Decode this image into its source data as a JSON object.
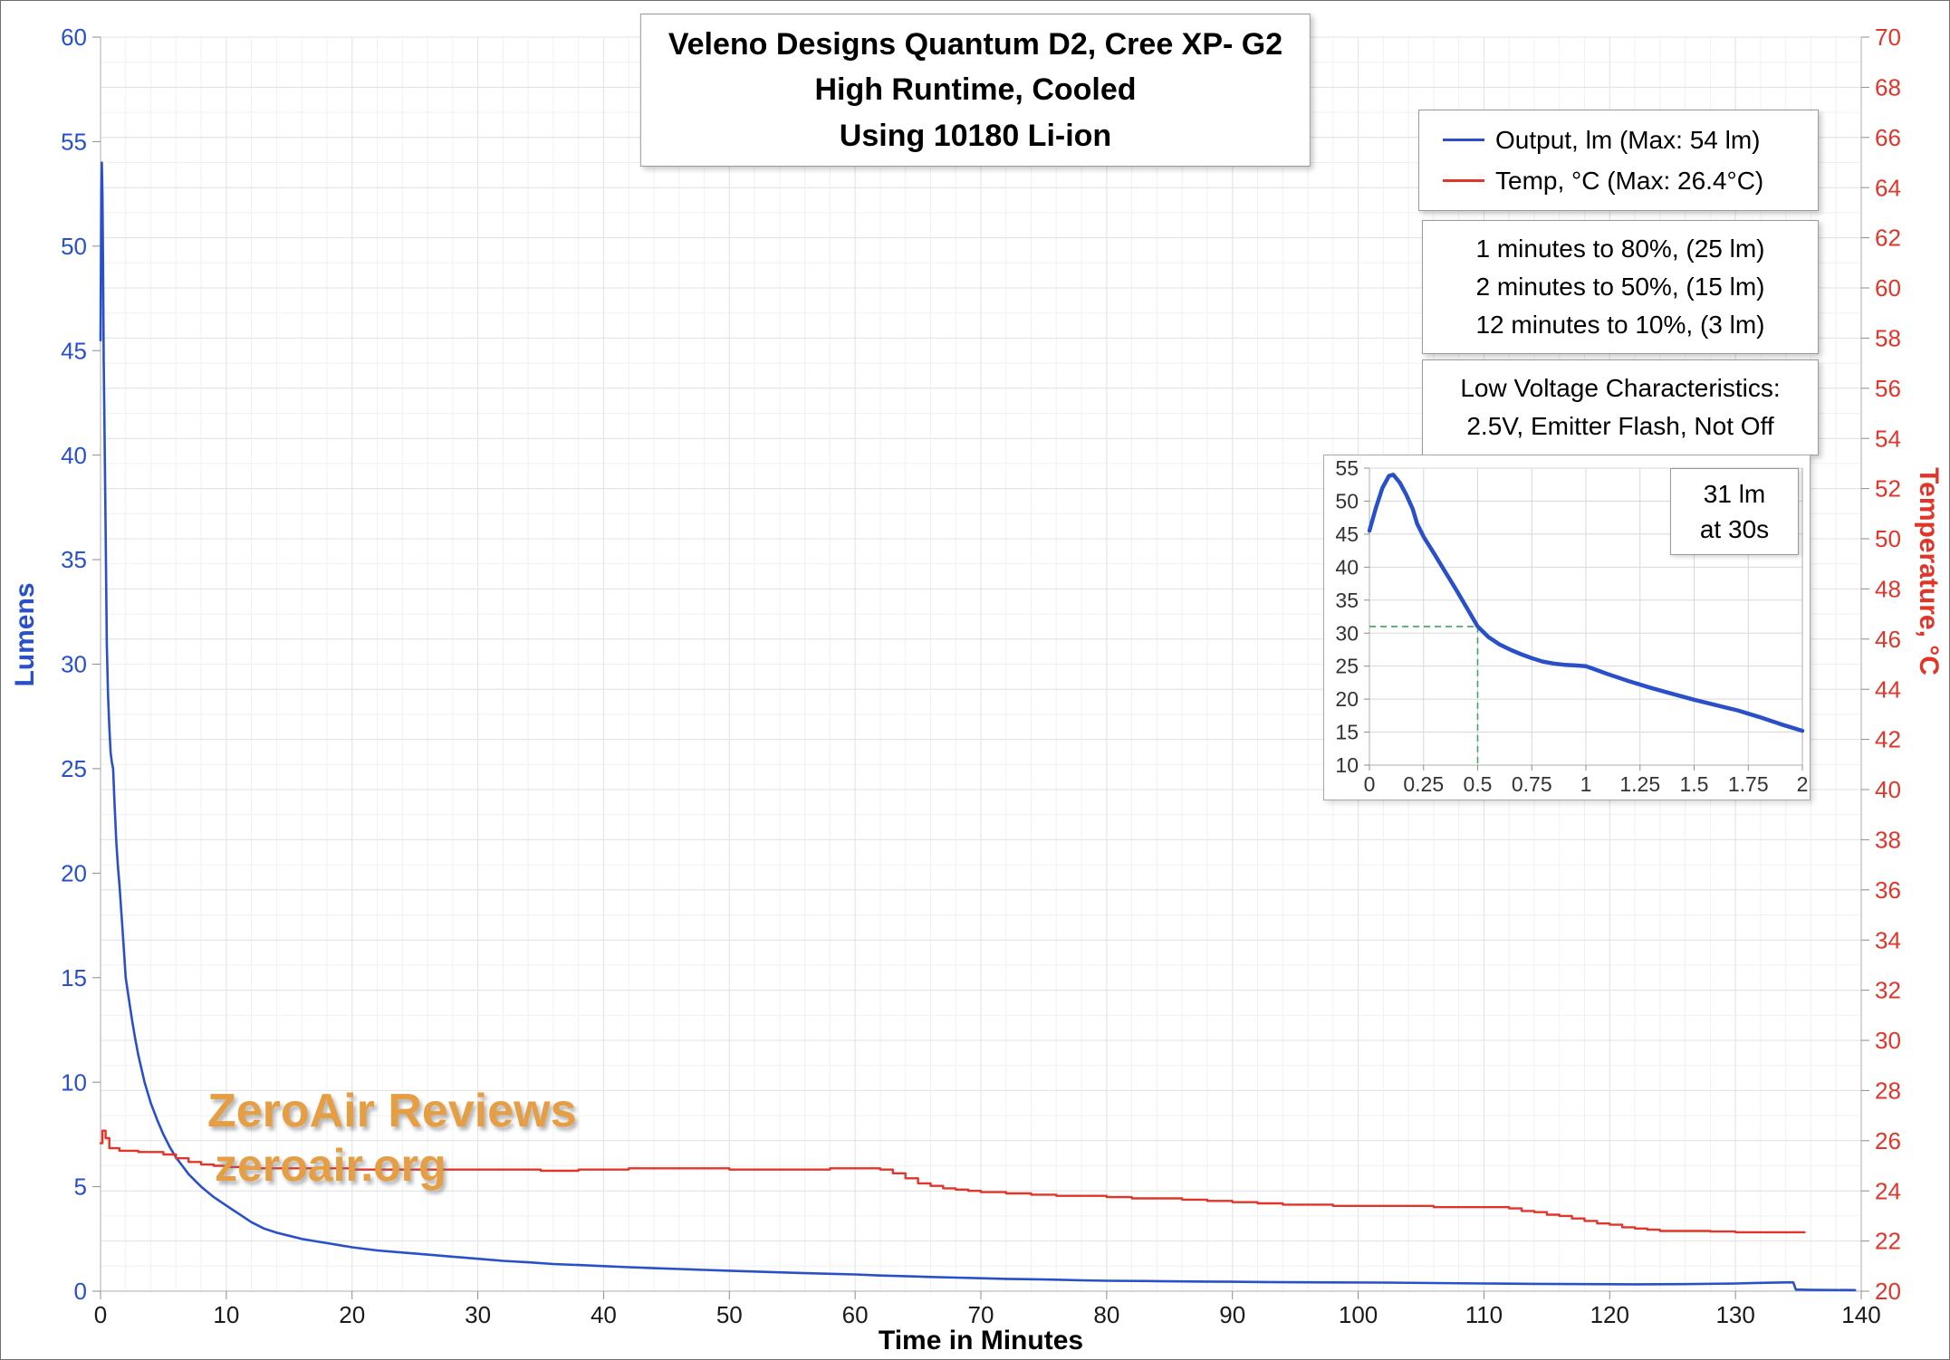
{
  "title": {
    "line1": "Veleno Designs Quantum D2, Cree XP- G2",
    "line2": "High Runtime, Cooled",
    "line3": "Using 10180 Li-ion"
  },
  "axes": {
    "left_title": "Lumens",
    "right_title": "Temperature, °C",
    "x_title": "Time in Minutes"
  },
  "legend": {
    "output_label": "Output, lm (Max: 54 lm)",
    "temp_label": "Temp, °C (Max: 26.4°C)"
  },
  "annotations": {
    "runtime_lines": [
      "1 minutes to 80%, (25 lm)",
      "2 minutes to 50%, (15 lm)",
      "12 minutes to 10%, (3 lm)"
    ],
    "low_voltage_lines": [
      "Low Voltage Characteristics:",
      "2.5V, Emitter Flash, Not Off"
    ],
    "inset_callout_line1": "31 lm",
    "inset_callout_line2": "at 30s"
  },
  "watermark": {
    "line1": "ZeroAir Reviews",
    "line2": "zeroair.org"
  },
  "colors": {
    "output": "#2950C8",
    "temp": "#E2352A",
    "grid_minor": "#F1F1F1",
    "grid_major": "#E3E3E3",
    "axis_line": "#ADADAD",
    "tick": "#8C8C8C",
    "x_label": "#1A1A1A",
    "inset_label": "#333333",
    "inset_crosshair": "#3FA45C",
    "watermark": "#E59E43",
    "box_border": "#9A9A9A"
  },
  "chart_data": [
    {
      "id": "main",
      "type": "line",
      "title": "Veleno Designs Quantum D2, Cree XP- G2 High Runtime, Cooled Using 10180 Li-ion",
      "xlabel": "Time in Minutes",
      "ylabel_left": "Lumens",
      "ylabel_right": "Temperature, °C",
      "xlim": [
        0,
        140
      ],
      "xtick": 10,
      "minor_xtick": 2,
      "ylim_left": [
        0,
        60
      ],
      "ytick_left": 5,
      "ylim_right": [
        20,
        70
      ],
      "ytick_right": 2,
      "minor_ytick_right": 1,
      "grid": true,
      "legend_position": "top-right",
      "series": [
        {
          "name": "Output, lm (Max: 54 lm)",
          "axis": "left",
          "color_key": "output",
          "interp": "linear",
          "stroke_width": 2.6,
          "points": [
            [
              0,
              45.5
            ],
            [
              0.06,
              52.5
            ],
            [
              0.1,
              54
            ],
            [
              0.15,
              52.5
            ],
            [
              0.2,
              49
            ],
            [
              0.25,
              44.5
            ],
            [
              0.3,
              42
            ],
            [
              0.4,
              36.5
            ],
            [
              0.5,
              31
            ],
            [
              0.6,
              28.5
            ],
            [
              0.7,
              27
            ],
            [
              0.8,
              25.8
            ],
            [
              0.9,
              25.3
            ],
            [
              1,
              25
            ],
            [
              1.1,
              23.5
            ],
            [
              1.25,
              21.5
            ],
            [
              1.4,
              20.2
            ],
            [
              1.5,
              19.5
            ],
            [
              1.75,
              17.3
            ],
            [
              2,
              15
            ],
            [
              2.25,
              14
            ],
            [
              2.5,
              13
            ],
            [
              2.75,
              12.1
            ],
            [
              3,
              11.3
            ],
            [
              3.5,
              10
            ],
            [
              4,
              9
            ],
            [
              4.5,
              8.2
            ],
            [
              5,
              7.5
            ],
            [
              5.5,
              6.9
            ],
            [
              6,
              6.4
            ],
            [
              6.5,
              6
            ],
            [
              7,
              5.6
            ],
            [
              7.5,
              5.3
            ],
            [
              8,
              5
            ],
            [
              9,
              4.5
            ],
            [
              10,
              4.1
            ],
            [
              11,
              3.7
            ],
            [
              12,
              3.3
            ],
            [
              13,
              3
            ],
            [
              14,
              2.8
            ],
            [
              15,
              2.65
            ],
            [
              16,
              2.5
            ],
            [
              17,
              2.4
            ],
            [
              18,
              2.3
            ],
            [
              19,
              2.2
            ],
            [
              20,
              2.1
            ],
            [
              22,
              1.95
            ],
            [
              24,
              1.85
            ],
            [
              26,
              1.75
            ],
            [
              28,
              1.65
            ],
            [
              30,
              1.55
            ],
            [
              32,
              1.45
            ],
            [
              34,
              1.38
            ],
            [
              36,
              1.3
            ],
            [
              38,
              1.25
            ],
            [
              40,
              1.2
            ],
            [
              42,
              1.15
            ],
            [
              44,
              1.1
            ],
            [
              46,
              1.06
            ],
            [
              48,
              1.02
            ],
            [
              50,
              0.98
            ],
            [
              52,
              0.94
            ],
            [
              54,
              0.9
            ],
            [
              56,
              0.86
            ],
            [
              58,
              0.83
            ],
            [
              60,
              0.8
            ],
            [
              62,
              0.75
            ],
            [
              64,
              0.72
            ],
            [
              66,
              0.68
            ],
            [
              68,
              0.65
            ],
            [
              70,
              0.62
            ],
            [
              72,
              0.59
            ],
            [
              74,
              0.57
            ],
            [
              76,
              0.55
            ],
            [
              78,
              0.52
            ],
            [
              80,
              0.5
            ],
            [
              84,
              0.48
            ],
            [
              88,
              0.46
            ],
            [
              90,
              0.45
            ],
            [
              94,
              0.43
            ],
            [
              98,
              0.42
            ],
            [
              102,
              0.41
            ],
            [
              106,
              0.39
            ],
            [
              110,
              0.37
            ],
            [
              114,
              0.35
            ],
            [
              118,
              0.34
            ],
            [
              122,
              0.33
            ],
            [
              126,
              0.34
            ],
            [
              130,
              0.37
            ],
            [
              132,
              0.4
            ],
            [
              134,
              0.42
            ],
            [
              134.6,
              0.42
            ],
            [
              134.8,
              0.08
            ],
            [
              136,
              0.06
            ],
            [
              139.5,
              0.05
            ]
          ]
        },
        {
          "name": "Temp, °C (Max: 26.4°C)",
          "axis": "right",
          "color_key": "temp",
          "interp": "step",
          "stroke_width": 2.4,
          "points": [
            [
              0,
              25.9
            ],
            [
              0.15,
              26.4
            ],
            [
              0.4,
              26.1
            ],
            [
              0.7,
              25.7
            ],
            [
              1.5,
              25.6
            ],
            [
              3,
              25.55
            ],
            [
              5,
              25.45
            ],
            [
              6,
              25.3
            ],
            [
              7,
              25.15
            ],
            [
              8,
              25.05
            ],
            [
              9,
              25
            ],
            [
              10,
              24.95
            ],
            [
              12,
              24.9
            ],
            [
              15,
              24.9
            ],
            [
              20,
              24.85
            ],
            [
              25,
              24.85
            ],
            [
              30,
              24.85
            ],
            [
              35,
              24.8
            ],
            [
              38,
              24.85
            ],
            [
              42,
              24.9
            ],
            [
              46,
              24.9
            ],
            [
              50,
              24.85
            ],
            [
              54,
              24.85
            ],
            [
              58,
              24.9
            ],
            [
              62,
              24.85
            ],
            [
              63,
              24.7
            ],
            [
              64,
              24.5
            ],
            [
              65,
              24.3
            ],
            [
              66,
              24.2
            ],
            [
              67,
              24.1
            ],
            [
              68,
              24.05
            ],
            [
              69,
              24
            ],
            [
              70,
              23.95
            ],
            [
              72,
              23.9
            ],
            [
              74,
              23.85
            ],
            [
              76,
              23.8
            ],
            [
              80,
              23.75
            ],
            [
              82,
              23.7
            ],
            [
              86,
              23.65
            ],
            [
              88,
              23.6
            ],
            [
              90,
              23.55
            ],
            [
              92,
              23.5
            ],
            [
              94,
              23.45
            ],
            [
              98,
              23.4
            ],
            [
              104,
              23.4
            ],
            [
              106,
              23.35
            ],
            [
              110,
              23.35
            ],
            [
              112,
              23.3
            ],
            [
              113,
              23.2
            ],
            [
              114,
              23.15
            ],
            [
              115,
              23.05
            ],
            [
              116,
              23
            ],
            [
              117,
              22.9
            ],
            [
              118,
              22.8
            ],
            [
              119,
              22.7
            ],
            [
              120,
              22.65
            ],
            [
              121,
              22.55
            ],
            [
              122,
              22.5
            ],
            [
              123,
              22.45
            ],
            [
              124,
              22.4
            ],
            [
              128,
              22.38
            ],
            [
              130,
              22.35
            ],
            [
              135.5,
              22.35
            ]
          ]
        }
      ]
    },
    {
      "id": "inset",
      "type": "line",
      "title": "Output, first 2 minutes (zoom)",
      "xlim": [
        0,
        2
      ],
      "xtick": 0.25,
      "ylim_left": [
        10,
        55
      ],
      "ytick_left": 5,
      "grid": true,
      "crosshair": {
        "x": 0.5,
        "y": 31,
        "label": "31 lm at 30s"
      },
      "series": [
        {
          "name": "Output, lm",
          "axis": "left",
          "color_key": "output",
          "interp": "linear",
          "stroke_width": 4.5,
          "points": [
            [
              0,
              45.5
            ],
            [
              0.03,
              49
            ],
            [
              0.06,
              52
            ],
            [
              0.09,
              53.8
            ],
            [
              0.11,
              54
            ],
            [
              0.14,
              52.8
            ],
            [
              0.17,
              51
            ],
            [
              0.2,
              48.8
            ],
            [
              0.22,
              46.6
            ],
            [
              0.25,
              44.6
            ],
            [
              0.3,
              42
            ],
            [
              0.35,
              39.3
            ],
            [
              0.4,
              36.6
            ],
            [
              0.45,
              33.8
            ],
            [
              0.5,
              31
            ],
            [
              0.55,
              29.4
            ],
            [
              0.6,
              28.3
            ],
            [
              0.65,
              27.5
            ],
            [
              0.7,
              26.8
            ],
            [
              0.75,
              26.2
            ],
            [
              0.8,
              25.7
            ],
            [
              0.85,
              25.4
            ],
            [
              0.9,
              25.2
            ],
            [
              0.95,
              25.1
            ],
            [
              1,
              25
            ],
            [
              1.05,
              24.4
            ],
            [
              1.1,
              23.8
            ],
            [
              1.2,
              22.7
            ],
            [
              1.3,
              21.7
            ],
            [
              1.4,
              20.8
            ],
            [
              1.5,
              19.9
            ],
            [
              1.6,
              19.1
            ],
            [
              1.7,
              18.3
            ],
            [
              1.8,
              17.3
            ],
            [
              1.9,
              16.2
            ],
            [
              2,
              15.2
            ]
          ]
        }
      ]
    }
  ]
}
